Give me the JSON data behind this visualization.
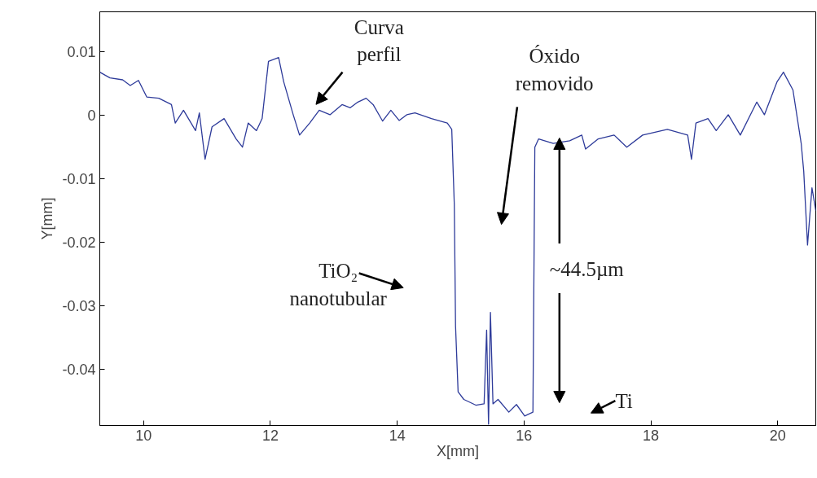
{
  "chart_data": {
    "type": "line",
    "xlabel": "X[mm]",
    "ylabel": "Y[mm]",
    "xlim": [
      9.31,
      20.6
    ],
    "ylim": [
      -0.0488,
      0.0163
    ],
    "xticks": [
      10,
      12,
      14,
      16,
      18,
      20
    ],
    "yticks": [
      0.01,
      0,
      -0.01,
      -0.02,
      -0.03,
      -0.04
    ],
    "grid": false,
    "marker": "none",
    "line_style": "solid",
    "annotations": [
      "Curva\nperfil",
      "Óxido\nremovido",
      "TiO₂\nnanotubular",
      "~44.5µm",
      "Ti"
    ],
    "series": [
      {
        "color": "#2e3b9a",
        "x": [
          9.31,
          9.47,
          9.67,
          9.79,
          9.92,
          10.05,
          10.24,
          10.44,
          10.5,
          10.63,
          10.82,
          10.88,
          10.97,
          11.08,
          11.27,
          11.46,
          11.56,
          11.65,
          11.78,
          11.87,
          11.97,
          12.13,
          12.21,
          12.36,
          12.46,
          12.62,
          12.77,
          12.94,
          13.13,
          13.26,
          13.38,
          13.51,
          13.62,
          13.77,
          13.9,
          14.03,
          14.15,
          14.28,
          14.54,
          14.79,
          14.86,
          14.9,
          14.92,
          14.96,
          15.05,
          15.24,
          15.37,
          15.41,
          15.44,
          15.47,
          15.51,
          15.59,
          15.76,
          15.88,
          16.01,
          16.14,
          16.17,
          16.23,
          16.46,
          16.72,
          16.91,
          16.97,
          17.17,
          17.42,
          17.62,
          17.87,
          18.26,
          18.58,
          18.64,
          18.71,
          18.9,
          19.03,
          19.22,
          19.41,
          19.67,
          19.79,
          19.99,
          20.09,
          20.24,
          20.37,
          20.41,
          20.47,
          20.54,
          20.6
        ],
        "values": [
          0.0068,
          0.0059,
          0.0056,
          0.0047,
          0.0055,
          0.0029,
          0.0027,
          0.0017,
          -0.0012,
          0.0008,
          -0.0024,
          0.0004,
          -0.0069,
          -0.0018,
          -0.0005,
          -0.0037,
          -0.005,
          -0.0012,
          -0.0024,
          -0.0005,
          0.0085,
          0.0091,
          0.0053,
          0.0001,
          -0.0031,
          -0.0012,
          0.0008,
          0.0001,
          0.0017,
          0.0012,
          0.0021,
          0.0027,
          0.0017,
          -0.0009,
          0.0008,
          -0.0008,
          0.0001,
          0.0004,
          -0.0005,
          -0.0012,
          -0.0022,
          -0.014,
          -0.0332,
          -0.0435,
          -0.0447,
          -0.0456,
          -0.0454,
          -0.0338,
          -0.0486,
          -0.031,
          -0.0454,
          -0.0447,
          -0.0467,
          -0.0455,
          -0.0473,
          -0.0467,
          -0.005,
          -0.0037,
          -0.0044,
          -0.004,
          -0.0031,
          -0.0053,
          -0.0037,
          -0.0031,
          -0.005,
          -0.0031,
          -0.0022,
          -0.0031,
          -0.0069,
          -0.0012,
          -0.0005,
          -0.0024,
          0.0001,
          -0.0031,
          0.0021,
          0.0001,
          0.0053,
          0.0068,
          0.004,
          -0.0044,
          -0.0088,
          -0.0204,
          -0.0114,
          -0.015
        ]
      }
    ]
  }
}
